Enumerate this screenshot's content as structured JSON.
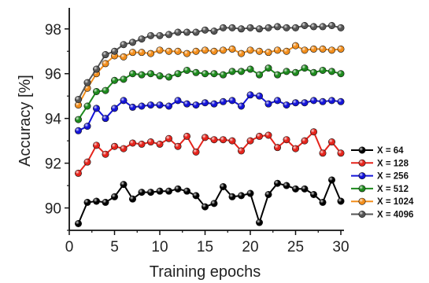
{
  "chart_data": {
    "type": "line",
    "xlabel": "Training epochs",
    "ylabel": "Accuracy [%]",
    "xlim": [
      0,
      30
    ],
    "ylim": [
      89,
      98.8
    ],
    "xticks": [
      0,
      5,
      10,
      15,
      20,
      25,
      30
    ],
    "yticks": [
      90,
      92,
      94,
      96,
      98
    ],
    "grid": false,
    "legend_position": "right",
    "x": [
      1,
      2,
      3,
      4,
      5,
      6,
      7,
      8,
      9,
      10,
      11,
      12,
      13,
      14,
      15,
      16,
      17,
      18,
      19,
      20,
      21,
      22,
      23,
      24,
      25,
      26,
      27,
      28,
      29,
      30
    ],
    "series": [
      {
        "name": "X = 64",
        "color": "#000000",
        "values": [
          89.3,
          90.25,
          90.3,
          90.25,
          90.5,
          91.05,
          90.4,
          90.7,
          90.7,
          90.75,
          90.75,
          90.85,
          90.75,
          90.55,
          90.05,
          90.2,
          90.95,
          90.5,
          90.55,
          90.65,
          89.35,
          90.6,
          91.1,
          91.0,
          90.85,
          90.85,
          90.6,
          90.25,
          91.25,
          90.3
        ]
      },
      {
        "name": "X = 128",
        "color": "#e5241c",
        "values": [
          91.55,
          92.05,
          92.8,
          92.4,
          92.75,
          92.65,
          92.9,
          92.85,
          92.95,
          92.85,
          93.1,
          92.75,
          93.2,
          92.5,
          93.15,
          93.05,
          93.05,
          93.0,
          92.55,
          93.0,
          93.2,
          93.25,
          92.7,
          93.05,
          92.65,
          93.0,
          93.4,
          92.45,
          92.95,
          92.45
        ]
      },
      {
        "name": "X = 256",
        "color": "#1414d8",
        "values": [
          93.45,
          93.65,
          94.45,
          94.0,
          94.45,
          94.8,
          94.5,
          94.55,
          94.6,
          94.6,
          94.55,
          94.8,
          94.65,
          94.6,
          94.7,
          94.65,
          94.75,
          94.8,
          94.55,
          95.05,
          95.0,
          94.65,
          94.8,
          94.6,
          94.7,
          94.7,
          94.8,
          94.75,
          94.8,
          94.75
        ]
      },
      {
        "name": "X = 512",
        "color": "#1d8a1d",
        "values": [
          93.95,
          94.55,
          95.2,
          95.25,
          95.7,
          95.75,
          96.0,
          95.95,
          96.0,
          95.9,
          95.85,
          96.0,
          96.15,
          96.05,
          96.0,
          96.0,
          95.95,
          96.1,
          96.1,
          96.2,
          95.95,
          96.25,
          95.95,
          96.1,
          96.05,
          96.25,
          96.05,
          96.15,
          96.1,
          96.0
        ]
      },
      {
        "name": "X = 1024",
        "color": "#f28e1c",
        "values": [
          94.6,
          95.35,
          96.0,
          96.45,
          96.8,
          96.75,
          96.95,
          96.95,
          96.9,
          97.05,
          97.0,
          97.0,
          96.9,
          97.0,
          97.05,
          97.0,
          97.05,
          97.1,
          96.9,
          97.05,
          97.0,
          96.95,
          97.05,
          97.0,
          97.25,
          97.05,
          97.1,
          97.1,
          97.05,
          97.1
        ]
      },
      {
        "name": "X = 4096",
        "color": "#555555",
        "values": [
          94.85,
          95.6,
          96.2,
          96.85,
          97.0,
          97.3,
          97.4,
          97.55,
          97.7,
          97.7,
          97.75,
          97.85,
          97.85,
          97.85,
          97.95,
          97.9,
          98.05,
          98.05,
          98.0,
          98.05,
          98.0,
          98.05,
          98.1,
          98.05,
          98.05,
          98.15,
          98.1,
          98.1,
          98.15,
          98.05
        ]
      }
    ]
  }
}
